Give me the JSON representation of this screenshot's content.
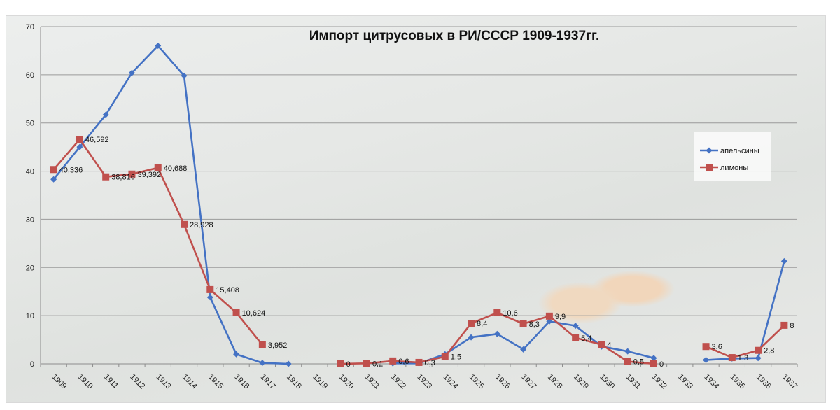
{
  "chart_data": {
    "type": "line",
    "title": "Импорт цитрусовых в РИ/СССР 1909-1937гг.",
    "xlabel": "",
    "ylabel": "",
    "ylim": [
      0,
      70
    ],
    "yticks": [
      0,
      10,
      20,
      30,
      40,
      50,
      60,
      70
    ],
    "categories": [
      "1909",
      "1910",
      "1911",
      "1912",
      "1913",
      "1914",
      "1915",
      "1916",
      "1917",
      "1918",
      "1919",
      "1920",
      "1921",
      "1922",
      "1923",
      "1924",
      "1925",
      "1926",
      "1927",
      "1928",
      "1929",
      "1930",
      "1931",
      "1932",
      "1933",
      "1934",
      "1935",
      "1936",
      "1937"
    ],
    "grid": true,
    "legend_position": "right",
    "series": [
      {
        "name": "апельсины",
        "color": "#4472c4",
        "marker": "diamond",
        "values": [
          38.3,
          45.0,
          51.7,
          60.4,
          66.0,
          59.8,
          13.8,
          2.0,
          0.2,
          0.0,
          null,
          null,
          null,
          0.1,
          0.1,
          2.0,
          5.5,
          6.2,
          3.0,
          8.8,
          7.9,
          3.6,
          2.6,
          1.2,
          null,
          0.8,
          1.1,
          1.2,
          21.3
        ]
      },
      {
        "name": "лимоны",
        "color": "#c0504d",
        "marker": "square",
        "values": [
          40.336,
          46.592,
          38.816,
          39.392,
          40.688,
          28.928,
          15.408,
          10.624,
          3.952,
          null,
          null,
          0,
          0.1,
          0.6,
          0.3,
          1.5,
          8.4,
          10.6,
          8.3,
          9.9,
          5.4,
          4,
          0.5,
          0,
          null,
          3.6,
          1.3,
          2.8,
          8
        ],
        "labels": [
          "40,336",
          "46,592",
          "38,816",
          "39,392",
          "40,688",
          "28,928",
          "15,408",
          "10,624",
          "3,952",
          null,
          null,
          "0",
          "0,1",
          "0,6",
          "0,3",
          "1,5",
          "8,4",
          "10,6",
          "8,3",
          "9,9",
          "5,4",
          "4",
          "0,5",
          "0",
          null,
          "3,6",
          "1,3",
          "2,8",
          "8"
        ]
      }
    ]
  }
}
